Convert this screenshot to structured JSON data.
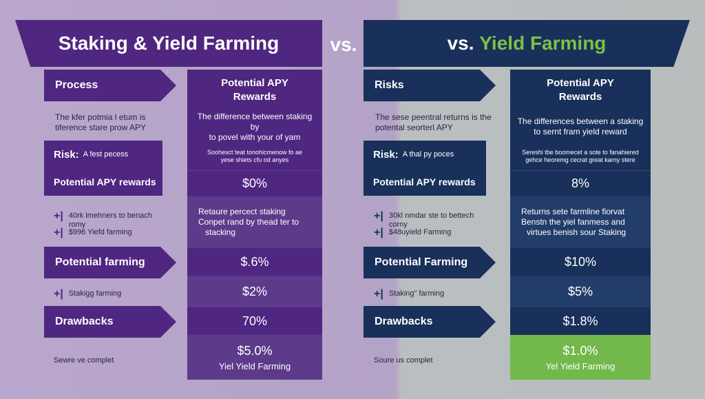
{
  "header": {
    "left_title": "Staking & Yield Farming",
    "vs_mid": "vs.",
    "right_vs": "vs.",
    "right_title": "Yield Farming"
  },
  "left": {
    "arrow_process": "Process",
    "intro": [
      "The kfer potmia l etum is",
      "tiference stare prow APY"
    ],
    "risk_label": "Risk:",
    "risk_text": "A fest pecess",
    "apy_rewards": "Potential APY rewards",
    "plus_items": [
      "40rk lmehners to benach",
      "romy",
      "$996 Yiefd farming"
    ],
    "potential_farming": "Potential farming",
    "staking_farming": "Stakigg farming",
    "drawbacks": "Drawbacks",
    "source": "Sewre ve complet"
  },
  "left_col": {
    "head": [
      "Potential APY",
      "Rewards"
    ],
    "desc": [
      "The difference between staking by",
      "to povel with your of yam"
    ],
    "tiny": [
      "Soohesct teat tonohicmenow fo ae",
      "yese shiets cfu od anyes"
    ],
    "v1": "$0%",
    "bullets": [
      "Retaure percect staking",
      "Conpet rand by thead ter to",
      "stacking"
    ],
    "v2": "$.6%",
    "v3": "$2%",
    "v4": "70%",
    "v5": "$5.0%",
    "foot": "Yiel Yield Farming"
  },
  "right": {
    "arrow_risks": "Risks",
    "intro": [
      "The sese peentral returns is the",
      "potental seorterl APY"
    ],
    "risk_label": "Risk:",
    "risk_text": "A thal py poces",
    "apy_rewards": "Potential APY rewards",
    "plus_items": [
      "30kl nmdar ste to bettech",
      "corny",
      "$48uyield Farming"
    ],
    "potential_farming": "Potential Farming",
    "staking_farming": "Staking\" farming",
    "drawbacks": "Drawbacks",
    "source": "Soure us complet"
  },
  "right_col": {
    "head": [
      "Potential APY",
      "Rewards"
    ],
    "desc": [
      "The differences between a staking",
      "to sernt fram yield reward"
    ],
    "tiny": [
      "Sereshi tbe boomecet a sote to fanahiered",
      "gehce heoremg cecrat great karny stere"
    ],
    "v1": "8%",
    "bullets": [
      "Returns sete farmline fiorvat",
      "Benstn the yiel fanmess and",
      "virtues benish sour Staking"
    ],
    "v2": "$10%",
    "v3": "$5%",
    "v4": "$1.8%",
    "v5": "$1.0%",
    "foot": "Yel Yield Farming"
  },
  "colors": {
    "purple": "#4f2680",
    "navy": "#18305a",
    "green": "#72b84a"
  }
}
